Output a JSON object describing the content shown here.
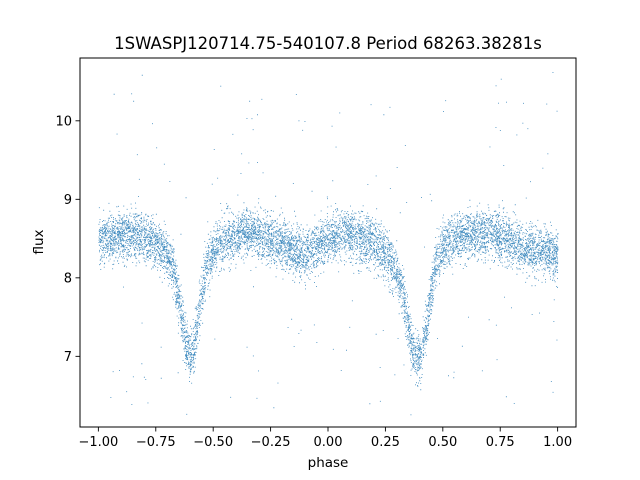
{
  "chart_data": {
    "type": "scatter",
    "title": "1SWASPJ120714.75-540107.8 Period 68263.38281s",
    "xlabel": "phase",
    "ylabel": "flux",
    "xlim": [
      -1.08,
      1.08
    ],
    "ylim": [
      6.1,
      10.8
    ],
    "xticks": [
      -1.0,
      -0.75,
      -0.5,
      -0.25,
      0.0,
      0.25,
      0.5,
      0.75,
      1.0
    ],
    "xtick_labels": [
      "−1.00",
      "−0.75",
      "−0.50",
      "−0.25",
      "0.00",
      "0.25",
      "0.50",
      "0.75",
      "1.00"
    ],
    "yticks": [
      7,
      8,
      9,
      10
    ],
    "ytick_labels": [
      "7",
      "8",
      "9",
      "10"
    ],
    "grid": false,
    "marker_color": "#1f77b4",
    "series": [
      {
        "name": "",
        "note_shape": "phase-folded eclipsing binary light curve, repeated over two cycles",
        "x": [
          -1.0,
          -0.95,
          -0.9,
          -0.85,
          -0.8,
          -0.75,
          -0.7,
          -0.67,
          -0.65,
          -0.63,
          -0.61,
          -0.6,
          -0.59,
          -0.57,
          -0.55,
          -0.53,
          -0.5,
          -0.45,
          -0.4,
          -0.35,
          -0.3,
          -0.25,
          -0.2,
          -0.15,
          -0.1,
          -0.05,
          0.0,
          0.05,
          0.1,
          0.15,
          0.2,
          0.25,
          0.3,
          0.33,
          0.35,
          0.37,
          0.39,
          0.4,
          0.41,
          0.43,
          0.45,
          0.47,
          0.5,
          0.55,
          0.6,
          0.65,
          0.7,
          0.75,
          0.8,
          0.85,
          0.9,
          0.95,
          1.0
        ],
        "y": [
          8.5,
          8.5,
          8.55,
          8.55,
          8.52,
          8.45,
          8.3,
          8.05,
          7.7,
          7.35,
          7.05,
          6.95,
          7.05,
          7.4,
          7.8,
          8.15,
          8.35,
          8.5,
          8.55,
          8.6,
          8.55,
          8.5,
          8.42,
          8.35,
          8.3,
          8.4,
          8.5,
          8.55,
          8.55,
          8.5,
          8.45,
          8.3,
          8.05,
          7.7,
          7.35,
          7.05,
          6.95,
          7.0,
          7.1,
          7.45,
          7.85,
          8.2,
          8.4,
          8.5,
          8.55,
          8.55,
          8.55,
          8.52,
          8.45,
          8.4,
          8.35,
          8.35,
          8.3
        ]
      }
    ]
  }
}
